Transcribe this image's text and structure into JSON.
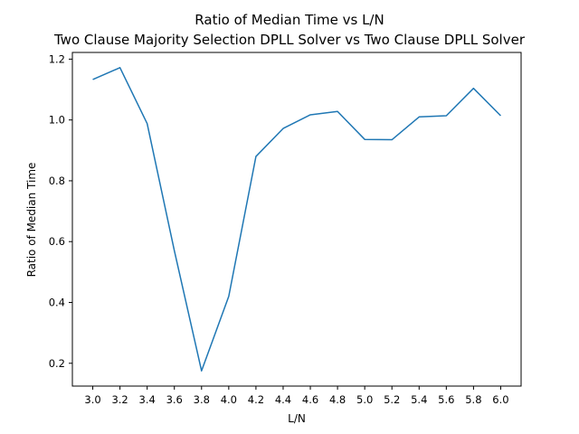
{
  "chart_data": {
    "type": "line",
    "title": "Ratio of Median Time vs L/N",
    "subtitle": "Two Clause Majority Selection DPLL Solver vs Two Clause DPLL Solver",
    "xlabel": "L/N",
    "ylabel": "Ratio of Median Time",
    "x": [
      3.0,
      3.2,
      3.4,
      3.6,
      3.8,
      4.0,
      4.2,
      4.4,
      4.6,
      4.8,
      5.0,
      5.2,
      5.4,
      5.6,
      5.8,
      6.0
    ],
    "x_tick_labels": [
      "3.0",
      "3.2",
      "3.4",
      "3.6",
      "3.8",
      "4.0",
      "4.2",
      "4.4",
      "4.6",
      "4.8",
      "5.0",
      "5.2",
      "5.4",
      "5.6",
      "5.8",
      "6.0"
    ],
    "series": [
      {
        "color": "#1f77b4",
        "values": [
          1.133,
          1.172,
          0.988,
          0.57,
          0.175,
          0.42,
          0.88,
          0.972,
          1.017,
          1.028,
          0.936,
          0.935,
          1.01,
          1.014,
          1.104,
          1.014
        ]
      }
    ],
    "y_ticks": [
      0.2,
      0.4,
      0.6,
      0.8,
      1.0,
      1.2
    ],
    "y_tick_labels": [
      "0.2",
      "0.4",
      "0.6",
      "0.8",
      "1.0",
      "1.2"
    ],
    "xlim": [
      2.85,
      6.15
    ],
    "ylim": [
      0.125,
      1.222
    ],
    "grid": false,
    "legend": "none"
  }
}
